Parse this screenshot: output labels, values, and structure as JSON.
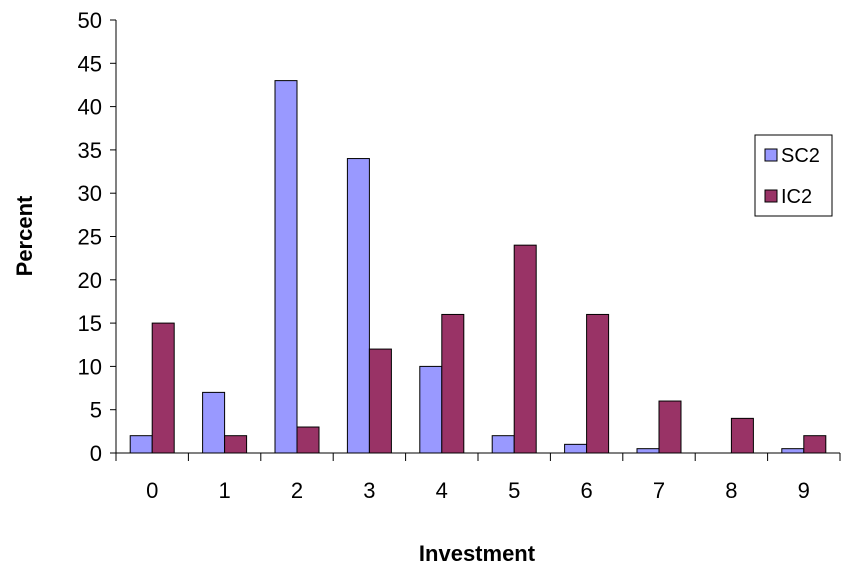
{
  "chart_data": {
    "type": "bar",
    "xlabel": "Investment",
    "ylabel": "Percent",
    "categories": [
      "0",
      "1",
      "2",
      "3",
      "4",
      "5",
      "6",
      "7",
      "8",
      "9"
    ],
    "ylim": [
      0,
      50
    ],
    "yticks": [
      0,
      5,
      10,
      15,
      20,
      25,
      30,
      35,
      40,
      45,
      50
    ],
    "grid": false,
    "legend_position": "right",
    "series": [
      {
        "name": "SC2",
        "color": "#9999ff",
        "values": [
          2,
          7,
          43,
          34,
          10,
          2,
          1,
          0.5,
          0,
          0.5
        ]
      },
      {
        "name": "IC2",
        "color": "#993366",
        "values": [
          15,
          2,
          3,
          12,
          16,
          24,
          16,
          6,
          4,
          2
        ]
      }
    ]
  }
}
